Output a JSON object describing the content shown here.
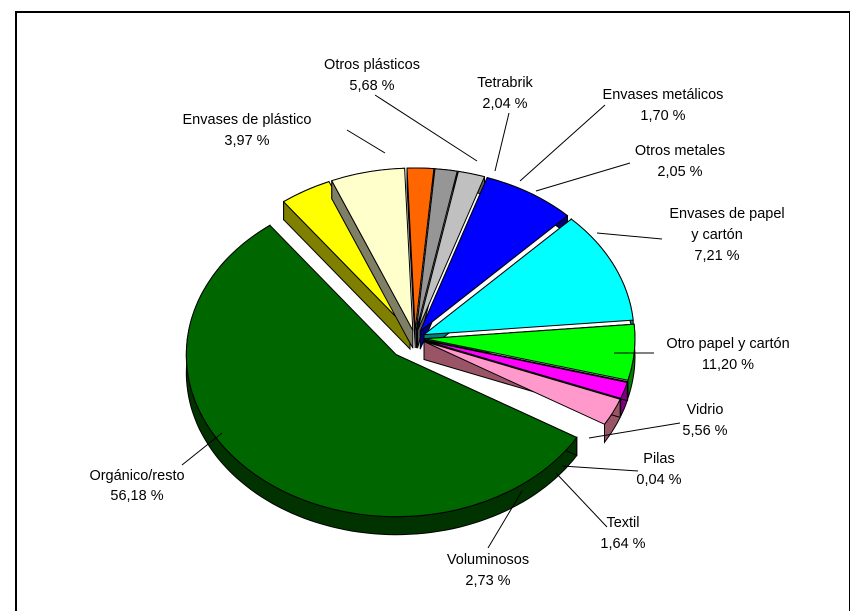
{
  "chart_data": {
    "type": "pie",
    "title": "",
    "exploded": true,
    "three_d": true,
    "slices": [
      {
        "label": "Orgánico/resto",
        "value_text": "56,18 %",
        "value": 56.18,
        "color": "#006600",
        "side_color": "#003300"
      },
      {
        "label": "Envases de plástico",
        "value_text": "3,97 %",
        "value": 3.97,
        "color": "#ffff00",
        "side_color": "#7f7f00"
      },
      {
        "label": "Otros plásticos",
        "value_text": "5,68 %",
        "value": 5.68,
        "color": "#ffffcc",
        "side_color": "#7f7f66"
      },
      {
        "label": "Tetrabrik",
        "value_text": "2,04 %",
        "value": 2.04,
        "color": "#ff6600",
        "side_color": "#7f3300"
      },
      {
        "label": "Envases metálicos",
        "value_text": "1,70 %",
        "value": 1.7,
        "color": "#969696",
        "side_color": "#4b4b4b"
      },
      {
        "label": "Otros metales",
        "value_text": "2,05 %",
        "value": 2.05,
        "color": "#c0c0c0",
        "side_color": "#606060"
      },
      {
        "label": "Envases de papel y cartón",
        "value_text": "7,21 %",
        "value": 7.21,
        "color": "#0000ff",
        "side_color": "#00007f"
      },
      {
        "label": "Otro papel y cartón",
        "value_text": "11,20 %",
        "value": 11.2,
        "color": "#00ffff",
        "side_color": "#007f7f"
      },
      {
        "label": "Vidrio",
        "value_text": "5,56 %",
        "value": 5.56,
        "color": "#00ff00",
        "side_color": "#007f00"
      },
      {
        "label": "Pilas",
        "value_text": "0,04 %",
        "value": 0.04,
        "color": "#800080",
        "side_color": "#400040"
      },
      {
        "label": "Textil",
        "value_text": "1,64 %",
        "value": 1.64,
        "color": "#ff00ff",
        "side_color": "#7f007f"
      },
      {
        "label": "Voluminosos",
        "value_text": "2,73 %",
        "value": 2.73,
        "color": "#ff99cc",
        "side_color": "#995566"
      }
    ],
    "labels": {
      "organico": {
        "line1": "Orgánico/resto",
        "line2": "56,18 %"
      },
      "env_plast": {
        "line1": "Envases de plástico",
        "line2": "3,97 %"
      },
      "otros_plast": {
        "line1": "Otros plásticos",
        "line2": "5,68 %"
      },
      "tetrabrik": {
        "line1": "Tetrabrik",
        "line2": "2,04 %"
      },
      "env_met": {
        "line1": "Envases metálicos",
        "line2": "1,70 %"
      },
      "otros_met": {
        "line1": "Otros metales",
        "line2": "2,05 %"
      },
      "env_papel": {
        "line1": "Envases de papel",
        "line2": "y  cartón",
        "line3": "7,21 %"
      },
      "otro_papel": {
        "line1": "Otro papel y cartón",
        "line2": "11,20 %"
      },
      "vidrio": {
        "line1": "Vidrio",
        "line2": "5,56 %"
      },
      "pilas": {
        "line1": "Pilas",
        "line2": "0,04 %"
      },
      "textil": {
        "line1": "Textil",
        "line2": "1,64 %"
      },
      "volum": {
        "line1": "Voluminosos",
        "line2": "2,73 %"
      }
    }
  }
}
